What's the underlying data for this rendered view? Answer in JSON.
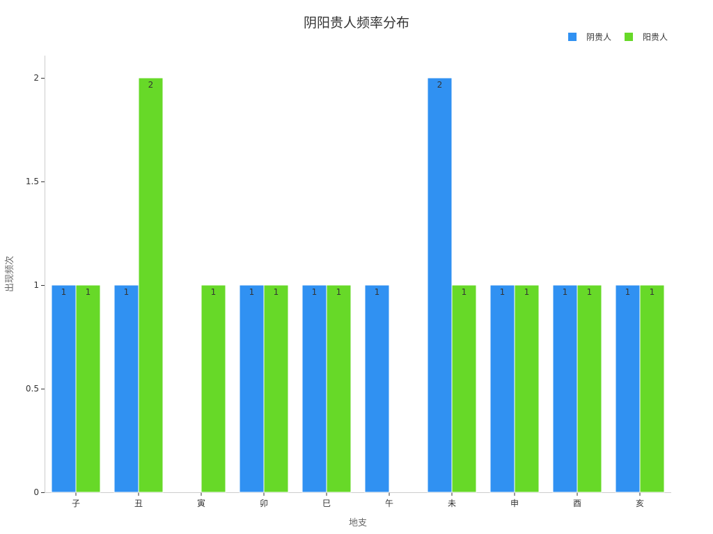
{
  "chart_data": {
    "type": "bar",
    "title": "阴阳贵人频率分布",
    "xlabel": "地支",
    "ylabel": "出现频次",
    "categories": [
      "子",
      "丑",
      "寅",
      "卯",
      "巳",
      "午",
      "未",
      "申",
      "酉",
      "亥"
    ],
    "series": [
      {
        "name": "阴贵人",
        "color": "#3091f2",
        "values": [
          1,
          1,
          0,
          1,
          1,
          1,
          2,
          1,
          1,
          1
        ]
      },
      {
        "name": "阳贵人",
        "color": "#67d928",
        "values": [
          1,
          2,
          1,
          1,
          1,
          0,
          1,
          1,
          1,
          1
        ]
      }
    ],
    "ylim": [
      0,
      2
    ],
    "yticks": [
      "0",
      "0.5",
      "1",
      "1.5",
      "2"
    ],
    "ytick_values": [
      0,
      0.5,
      1,
      1.5,
      2
    ],
    "grid": false,
    "legend_position": "top-right"
  }
}
